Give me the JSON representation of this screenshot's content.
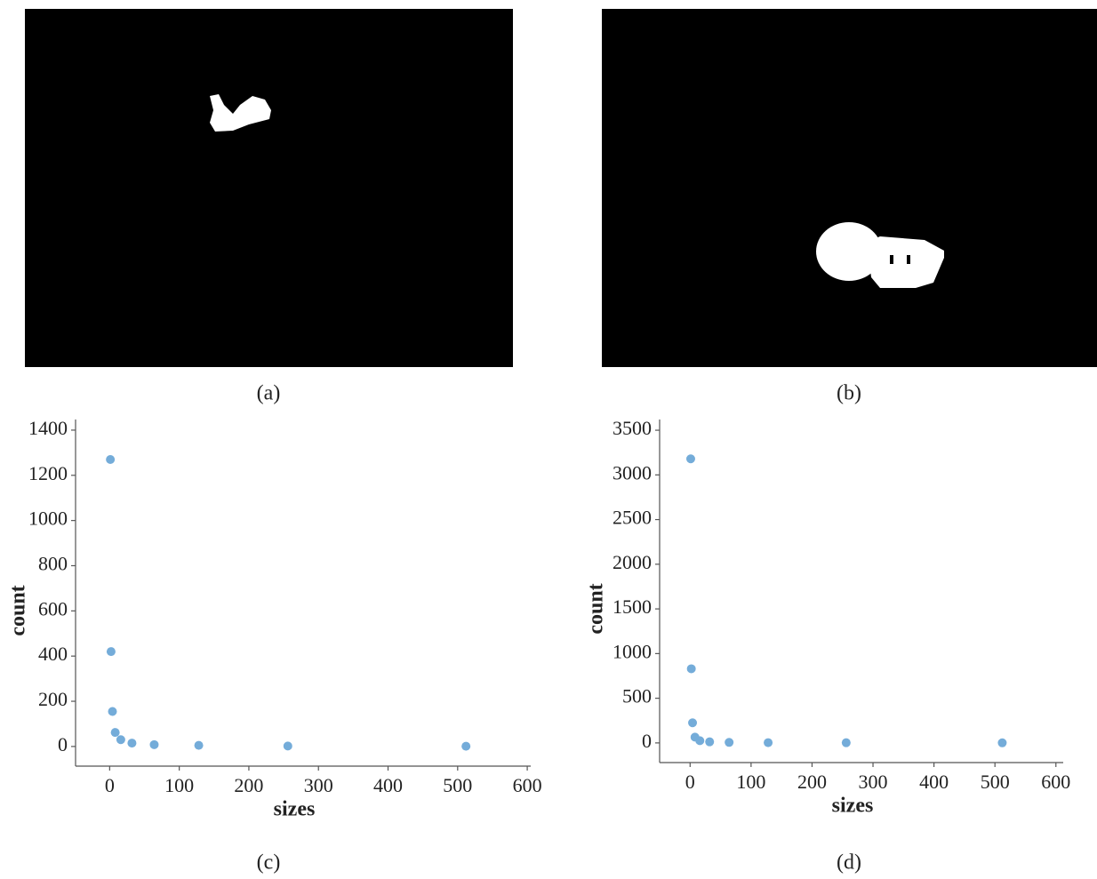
{
  "panel_labels": [
    "(a)",
    "(b)",
    "(c)",
    "(d)"
  ],
  "chart_data": [
    {
      "type": "scatter",
      "x_label": "sizes",
      "y_label": "count",
      "color": "#74acd9",
      "x": [
        1,
        2,
        4,
        8,
        16,
        32,
        64,
        128,
        256,
        512
      ],
      "values": [
        1270,
        420,
        155,
        62,
        30,
        15,
        8,
        5,
        2,
        1
      ],
      "xlim": [
        -49,
        605
      ],
      "xticks": [
        0,
        100,
        200,
        300,
        400,
        500,
        600
      ],
      "ylim": [
        -87,
        1447
      ],
      "yticks": [
        0,
        200,
        400,
        600,
        800,
        1000,
        1200,
        1400
      ]
    },
    {
      "type": "scatter",
      "x_label": "sizes",
      "y_label": "count",
      "color": "#74acd9",
      "x": [
        1,
        2,
        4,
        8,
        16,
        32,
        64,
        128,
        256,
        512
      ],
      "values": [
        3180,
        830,
        225,
        65,
        25,
        12,
        6,
        3,
        2,
        1
      ],
      "xlim": [
        -50,
        612
      ],
      "xticks": [
        0,
        100,
        200,
        300,
        400,
        500,
        600
      ],
      "ylim": [
        -220,
        3620
      ],
      "yticks": [
        0,
        500,
        1000,
        1500,
        2000,
        2500,
        3000,
        3500
      ]
    }
  ]
}
